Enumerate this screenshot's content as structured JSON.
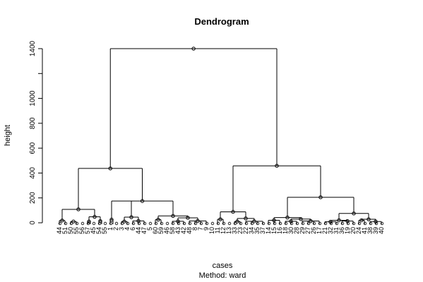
{
  "chart_data": {
    "type": "dendrogram",
    "title": "Dendrogram",
    "ylabel": "height",
    "xlabel": "cases",
    "sub": "Method:  ward",
    "ylim": [
      0,
      1400
    ],
    "yticks": [
      0,
      200,
      400,
      600,
      800,
      1000,
      1400
    ],
    "leaves": [
      "44",
      "51",
      "50",
      "55",
      "56",
      "57",
      "45",
      "54",
      "55",
      "1",
      "2",
      "3",
      "4",
      "6",
      "44",
      "47",
      "5",
      "60",
      "59",
      "46",
      "58",
      "43",
      "42",
      "48",
      "8",
      "7",
      "9",
      "10",
      "11",
      "12",
      "13",
      "33",
      "23",
      "22",
      "34",
      "35",
      "37",
      "14",
      "15",
      "16",
      "18",
      "30",
      "28",
      "29",
      "27",
      "26",
      "17",
      "21",
      "32",
      "31",
      "36",
      "19",
      "20",
      "24",
      "41",
      "38",
      "39",
      "40"
    ],
    "merges": [
      {
        "id": "A1",
        "leaves": [
          0,
          2
        ],
        "height": 18
      },
      {
        "id": "A2",
        "leaves": [
          2,
          4
        ],
        "height": 10
      },
      {
        "id": "A3",
        "leaves": [
          5,
          6
        ],
        "height": 10
      },
      {
        "id": "A4",
        "leaves": [
          7,
          8
        ],
        "height": 14
      },
      {
        "id": "A5",
        "children": [
          "A3",
          "A4"
        ],
        "height": 48
      },
      {
        "id": "A",
        "children": [
          "A1",
          "A5"
        ],
        "height": 108
      },
      {
        "id": "B1",
        "leaves": [
          9,
          10
        ],
        "height": 25
      },
      {
        "id": "B2",
        "leaves": [
          11,
          13
        ],
        "height": 10
      },
      {
        "id": "B3",
        "leaves": [
          13,
          16
        ],
        "height": 15
      },
      {
        "id": "B4",
        "children": [
          "B2",
          "B3"
        ],
        "height": 45
      },
      {
        "id": "B5",
        "leaves": [
          17,
          19
        ],
        "height": 25
      },
      {
        "id": "B6",
        "leaves": [
          20,
          23
        ],
        "height": 12
      },
      {
        "id": "B7",
        "leaves": [
          23,
          27
        ],
        "height": 15
      },
      {
        "id": "B8",
        "children": [
          "B6",
          "B7"
        ],
        "height": 40
      },
      {
        "id": "B9",
        "children": [
          "B5",
          "B8"
        ],
        "height": 55
      },
      {
        "id": "B",
        "children": [
          "B1",
          "B4",
          "B9"
        ],
        "height": 175
      },
      {
        "id": "L",
        "children": [
          "A",
          "B"
        ],
        "height": 437
      },
      {
        "id": "C1",
        "leaves": [
          28,
          30
        ],
        "height": 28
      },
      {
        "id": "C2",
        "leaves": [
          31,
          33
        ],
        "height": 10
      },
      {
        "id": "C3",
        "leaves": [
          33,
          37
        ],
        "height": 12
      },
      {
        "id": "C4",
        "children": [
          "C2",
          "C3"
        ],
        "height": 35
      },
      {
        "id": "C",
        "children": [
          "C1",
          "C4"
        ],
        "height": 88
      },
      {
        "id": "D1",
        "leaves": [
          37,
          40
        ],
        "height": 20
      },
      {
        "id": "D2",
        "leaves": [
          40,
          43
        ],
        "height": 12
      },
      {
        "id": "D3",
        "leaves": [
          43,
          47
        ],
        "height": 14
      },
      {
        "id": "D4",
        "children": [
          "D2",
          "D3"
        ],
        "height": 30
      },
      {
        "id": "D5",
        "children": [
          "D1",
          "D4"
        ],
        "height": 42
      },
      {
        "id": "D6",
        "leaves": [
          47,
          50
        ],
        "height": 8
      },
      {
        "id": "D7",
        "leaves": [
          50,
          53
        ],
        "height": 14
      },
      {
        "id": "D8",
        "children": [
          "D6",
          "D7"
        ],
        "height": 20
      },
      {
        "id": "D9",
        "leaves": [
          53,
          55
        ],
        "height": 20
      },
      {
        "id": "D10",
        "leaves": [
          55,
          58
        ],
        "height": 10
      },
      {
        "id": "D11",
        "children": [
          "D9",
          "D10"
        ],
        "height": 28
      },
      {
        "id": "D12",
        "children": [
          "D8",
          "D11"
        ],
        "height": 75
      },
      {
        "id": "D",
        "children": [
          "D5",
          "D12"
        ],
        "height": 205
      },
      {
        "id": "R",
        "children": [
          "C",
          "D"
        ],
        "height": 458
      },
      {
        "id": "ROOT",
        "children": [
          "L",
          "R"
        ],
        "height": 1400
      }
    ]
  }
}
